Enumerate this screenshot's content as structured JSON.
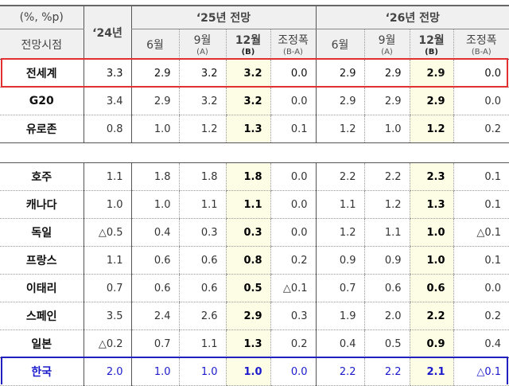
{
  "header": {
    "unit": "(%, %p)",
    "row_label": "전망시점",
    "y24": "‘24년",
    "y25": "‘25년  전망",
    "y26": "‘26년  전망",
    "months": [
      {
        "label": "6월",
        "sub": ""
      },
      {
        "label": "9월",
        "sub": "(A)"
      },
      {
        "label": "12월",
        "sub": "(B)"
      },
      {
        "label": "조정폭",
        "sub": "(B-A)"
      },
      {
        "label": "6월",
        "sub": ""
      },
      {
        "label": "9월",
        "sub": "(A)"
      },
      {
        "label": "12월",
        "sub": "(B)"
      },
      {
        "label": "조정폭",
        "sub": "(B-A)"
      }
    ]
  },
  "highlight_color": "#fdfde6",
  "group1": [
    {
      "name": "전세계",
      "values": [
        "3.3",
        "2.9",
        "3.2",
        "3.2",
        "0.0",
        "2.9",
        "2.9",
        "2.9",
        "0.0"
      ]
    },
    {
      "name": "G20",
      "values": [
        "3.4",
        "2.9",
        "3.2",
        "3.2",
        "0.0",
        "2.9",
        "2.9",
        "2.9",
        "0.0"
      ]
    },
    {
      "name": "유로존",
      "values": [
        "0.8",
        "1.0",
        "1.2",
        "1.3",
        "0.1",
        "1.2",
        "1.0",
        "1.2",
        "0.2"
      ]
    }
  ],
  "group2": [
    {
      "name": "호주",
      "values": [
        "1.1",
        "1.8",
        "1.8",
        "1.8",
        "0.0",
        "2.2",
        "2.2",
        "2.3",
        "0.1"
      ]
    },
    {
      "name": "캐나다",
      "values": [
        "1.0",
        "1.0",
        "1.1",
        "1.1",
        "0.0",
        "1.1",
        "1.2",
        "1.3",
        "0.1"
      ]
    },
    {
      "name": "독일",
      "values": [
        "△0.5",
        "0.4",
        "0.3",
        "0.3",
        "0.0",
        "1.2",
        "1.1",
        "1.0",
        "△0.1"
      ]
    },
    {
      "name": "프랑스",
      "values": [
        "1.1",
        "0.6",
        "0.6",
        "0.8",
        "0.2",
        "0.9",
        "0.9",
        "1.0",
        "0.1"
      ]
    },
    {
      "name": "이태리",
      "values": [
        "0.7",
        "0.6",
        "0.6",
        "0.5",
        "△0.1",
        "0.7",
        "0.6",
        "0.6",
        "0.0"
      ]
    },
    {
      "name": "스페인",
      "values": [
        "3.5",
        "2.4",
        "2.6",
        "2.9",
        "0.3",
        "1.9",
        "2.0",
        "2.2",
        "0.2"
      ]
    },
    {
      "name": "일본",
      "values": [
        "△0.2",
        "0.7",
        "1.1",
        "1.3",
        "0.2",
        "0.4",
        "0.5",
        "0.9",
        "0.4"
      ]
    },
    {
      "name": "한국",
      "values": [
        "2.0",
        "1.0",
        "1.0",
        "1.0",
        "0.0",
        "2.2",
        "2.2",
        "2.1",
        "△0.1"
      ]
    }
  ]
}
